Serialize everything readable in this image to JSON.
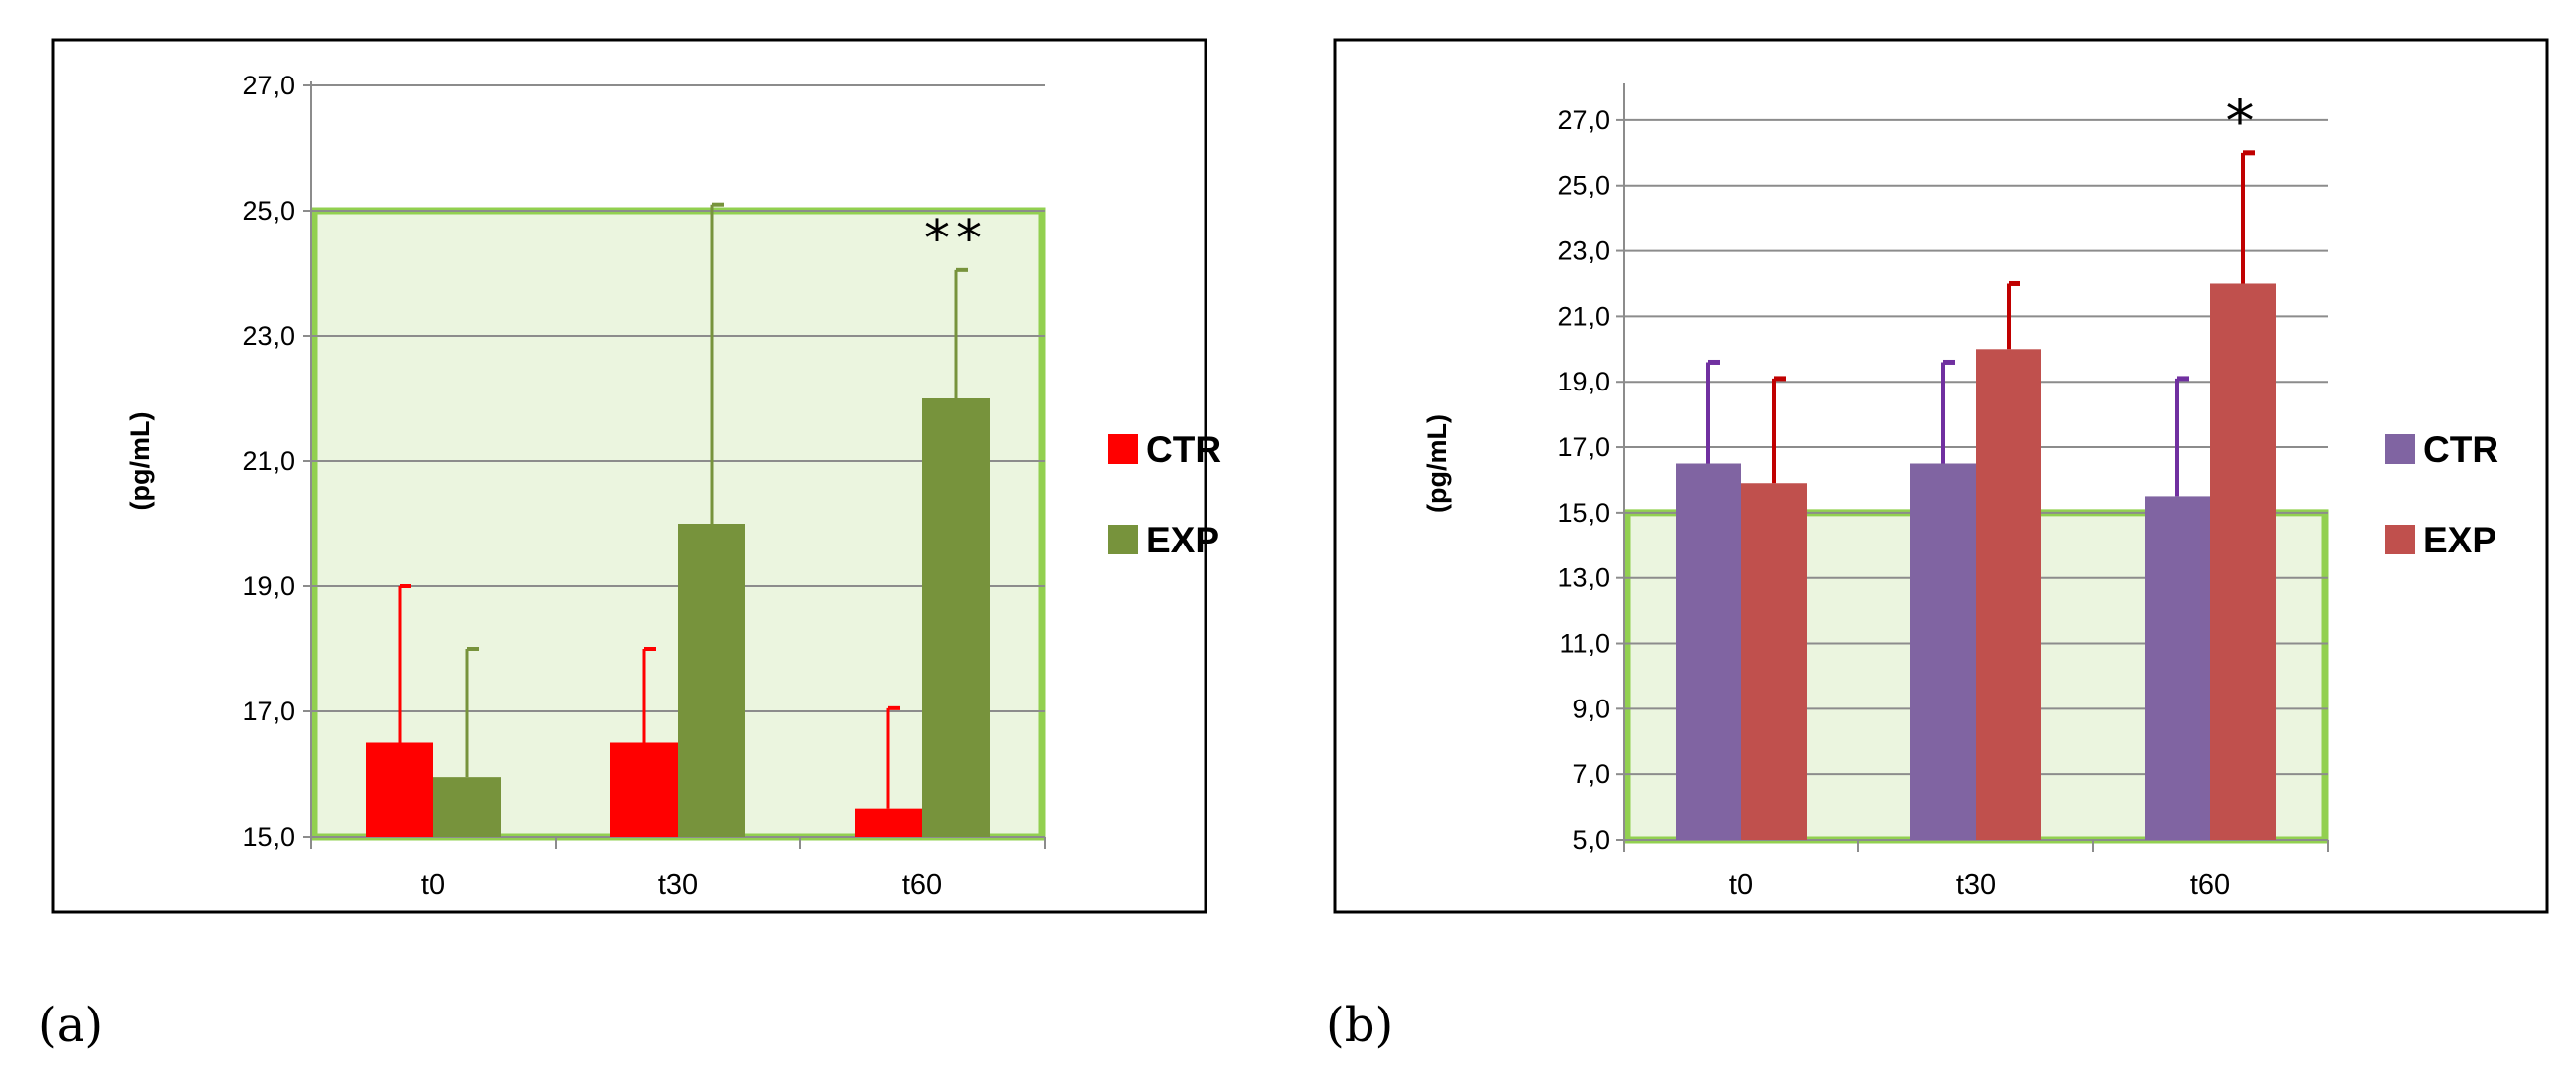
{
  "chart_data": [
    {
      "type": "bar",
      "panel_label": "(a)",
      "ylabel": "(pg/mL)",
      "xlabel": "",
      "ylim": [
        15.0,
        27.0
      ],
      "yticks": [
        "15,0",
        "17,0",
        "19,0",
        "21,0",
        "23,0",
        "25,0",
        "27,0"
      ],
      "categories": [
        "t0",
        "t30",
        "t60"
      ],
      "series": [
        {
          "name": "CTR",
          "color": "#ff0000",
          "values": [
            16.5,
            16.5,
            15.45
          ],
          "error": [
            2.5,
            1.5,
            1.6
          ]
        },
        {
          "name": "EXP",
          "color": "#77933c",
          "values": [
            15.95,
            20.0,
            22.0
          ],
          "error": [
            2.05,
            5.1,
            2.05
          ]
        }
      ],
      "shaded_band": {
        "from": 15.0,
        "to": 25.0,
        "fill": "#ebf5df",
        "border": "#92d050"
      },
      "annotations": [
        {
          "text": "**",
          "category": "t60"
        }
      ]
    },
    {
      "type": "bar",
      "panel_label": "(b)",
      "ylabel": "(pg/mL)",
      "xlabel": "",
      "ylim": [
        5.0,
        28.0
      ],
      "yticks": [
        "5,0",
        "7,0",
        "9,0",
        "11,0",
        "13,0",
        "15,0",
        "17,0",
        "19,0",
        "21,0",
        "23,0",
        "25,0",
        "27,0"
      ],
      "categories": [
        "t0",
        "t30",
        "t60"
      ],
      "series": [
        {
          "name": "CTR",
          "color": "#8064a2",
          "error_color": "#7030a0",
          "values": [
            16.5,
            16.5,
            15.5
          ],
          "error": [
            3.1,
            3.1,
            3.6
          ]
        },
        {
          "name": "EXP",
          "color": "#c0504d",
          "error_color": "#c00000",
          "values": [
            15.9,
            20.0,
            22.0
          ],
          "error": [
            3.2,
            2.0,
            4.0
          ]
        }
      ],
      "shaded_band": {
        "from": 5.0,
        "to": 15.0,
        "fill": "#ebf5df",
        "border": "#92d050"
      },
      "annotations": [
        {
          "text": "*",
          "category": "t60"
        }
      ]
    }
  ]
}
